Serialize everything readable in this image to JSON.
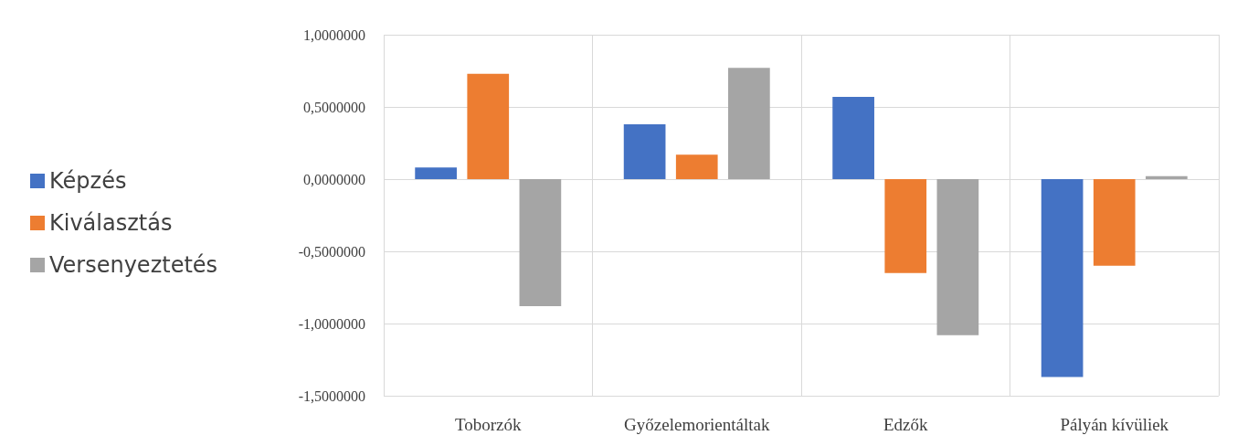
{
  "chart_data": {
    "type": "bar",
    "categories": [
      "Toborzók",
      "Győzelemorientáltak",
      "Edzők",
      "Pályán kívüliek"
    ],
    "series": [
      {
        "name": "Képzés",
        "color": "#4472c4",
        "values": [
          0.08,
          0.38,
          0.57,
          -1.37
        ]
      },
      {
        "name": "Kiválasztás",
        "color": "#ed7d31",
        "values": [
          0.73,
          0.17,
          -0.65,
          -0.6
        ]
      },
      {
        "name": "Versenyeztetés",
        "color": "#a5a5a5",
        "values": [
          -0.88,
          0.77,
          -1.08,
          0.02
        ]
      }
    ],
    "ylim": [
      -1.5,
      1
    ],
    "yticks": [
      {
        "value": -1.5,
        "label": "-1,5000000"
      },
      {
        "value": -1,
        "label": "-1,0000000"
      },
      {
        "value": -0.5,
        "label": "-0,5000000"
      },
      {
        "value": 0,
        "label": "0,0000000"
      },
      {
        "value": 0.5,
        "label": "0,5000000"
      },
      {
        "value": 1,
        "label": "1,0000000"
      }
    ],
    "grid": true,
    "legend": "left"
  }
}
